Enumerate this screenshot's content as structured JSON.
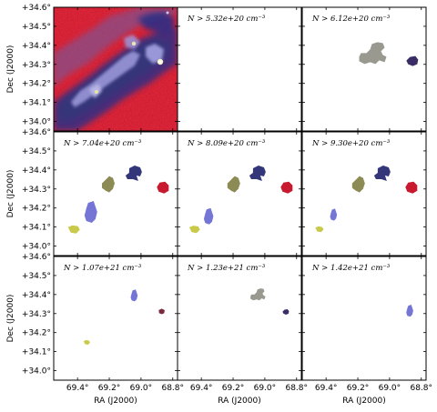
{
  "chart_data": {
    "type": "heatmap",
    "layout": "3x3 grid",
    "xlabel": "RA (J2000)",
    "ylabel": "Dec (J2000)",
    "x_ticks": [
      "69.4°",
      "69.2°",
      "69.0°",
      "68.8°"
    ],
    "x_tick_values": [
      69.4,
      69.2,
      69.0,
      68.8
    ],
    "y_ticks": [
      "+34.0°",
      "+34.1°",
      "+34.2°",
      "+34.3°",
      "+34.4°",
      "+34.5°",
      "+34.6°"
    ],
    "y_tick_values": [
      34.0,
      34.1,
      34.2,
      34.3,
      34.4,
      34.5,
      34.6
    ],
    "xlim": [
      69.55,
      68.77
    ],
    "ylim": [
      33.95,
      34.6
    ],
    "colors": {
      "map_red": "#d31a2c",
      "map_blue": "#2d2f85",
      "map_lavender": "#9a97d8",
      "gray": "#999990",
      "dark_purple": "#3a2c64",
      "navy": "#34367a",
      "crimson": "#c8192e",
      "periwinkle": "#7575d6",
      "olive": "#8d8b55",
      "yellow": "#c9c94a",
      "maroon": "#7a2a3a"
    },
    "panels": [
      {
        "threshold": "",
        "image": "column density map"
      },
      {
        "threshold": "$N > 5.32e+20\\,\\mathrm{cm}^{-3}$",
        "display": "N > 5.32e+20 cm⁻³",
        "clumps": []
      },
      {
        "threshold": "$N > 6.12e+20\\,\\mathrm{cm}^{-3}$",
        "display": "N > 6.12e+20 cm⁻³",
        "clumps": [
          {
            "color": "gray",
            "ra": 69.1,
            "dec": 34.34
          },
          {
            "color": "dark_purple",
            "ra": 68.86,
            "dec": 34.32
          }
        ]
      },
      {
        "threshold": "$N > 7.04e+20\\,\\mathrm{cm}^{-3}$",
        "display": "N > 7.04e+20 cm⁻³",
        "clumps": [
          {
            "color": "navy",
            "ra": 69.04,
            "dec": 34.38
          },
          {
            "color": "crimson",
            "ra": 68.86,
            "dec": 34.31
          },
          {
            "color": "olive",
            "ra": 69.2,
            "dec": 34.32
          },
          {
            "color": "periwinkle",
            "ra": 69.31,
            "dec": 34.17
          },
          {
            "color": "yellow",
            "ra": 69.42,
            "dec": 34.09
          }
        ]
      },
      {
        "threshold": "$N > 8.09e+20\\,\\mathrm{cm}^{-3}$",
        "display": "N > 8.09e+20 cm⁻³",
        "clumps": [
          {
            "color": "navy",
            "ra": 69.04,
            "dec": 34.38
          },
          {
            "color": "crimson",
            "ra": 68.86,
            "dec": 34.31
          },
          {
            "color": "olive",
            "ra": 69.19,
            "dec": 34.32
          },
          {
            "color": "periwinkle",
            "ra": 69.35,
            "dec": 34.15
          },
          {
            "color": "yellow",
            "ra": 69.44,
            "dec": 34.09
          }
        ]
      },
      {
        "threshold": "$N > 9.30e+20\\,\\mathrm{cm}^{-3}$",
        "display": "N > 9.30e+20 cm⁻³",
        "clumps": [
          {
            "color": "navy",
            "ra": 69.04,
            "dec": 34.38
          },
          {
            "color": "crimson",
            "ra": 68.86,
            "dec": 34.31
          },
          {
            "color": "olive",
            "ra": 69.19,
            "dec": 34.32
          },
          {
            "color": "periwinkle",
            "ra": 69.35,
            "dec": 34.16
          },
          {
            "color": "yellow",
            "ra": 69.44,
            "dec": 34.09
          }
        ]
      },
      {
        "threshold": "$N > 1.07e+21\\,\\mathrm{cm}^{-3}$",
        "display": "N > 1.07e+21 cm⁻³",
        "clumps": [
          {
            "color": "periwinkle",
            "ra": 69.04,
            "dec": 34.39
          },
          {
            "color": "maroon",
            "ra": 68.87,
            "dec": 34.31
          },
          {
            "color": "yellow",
            "ra": 69.34,
            "dec": 34.15
          }
        ]
      },
      {
        "threshold": "$N > 1.23e+21\\,\\mathrm{cm}^{-3}$",
        "display": "N > 1.23e+21 cm⁻³",
        "clumps": [
          {
            "color": "gray",
            "ra": 69.04,
            "dec": 34.39
          },
          {
            "color": "dark_purple",
            "ra": 68.87,
            "dec": 34.31
          }
        ]
      },
      {
        "threshold": "$N > 1.42e+21\\,\\mathrm{cm}^{-3}$",
        "display": "N > 1.42e+21 cm⁻³",
        "clumps": [
          {
            "color": "periwinkle",
            "ra": 68.87,
            "dec": 34.31
          }
        ]
      }
    ]
  }
}
